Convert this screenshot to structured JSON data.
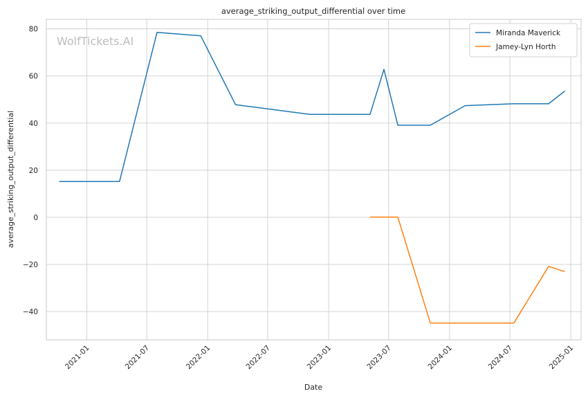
{
  "chart_data": {
    "type": "line",
    "title": "average_striking_output_differential over time",
    "xlabel": "Date",
    "ylabel": "average_striking_output_differential",
    "watermark": "WolfTickets.AI",
    "x_type": "date",
    "xlim": [
      "2020-09-01",
      "2025-02-01"
    ],
    "ylim": [
      -52,
      84
    ],
    "x_ticks": [
      "2021-01",
      "2021-07",
      "2022-01",
      "2022-07",
      "2023-01",
      "2023-07",
      "2024-01",
      "2024-07",
      "2025-01"
    ],
    "y_ticks": [
      80,
      60,
      40,
      20,
      0,
      -20,
      -40
    ],
    "grid": true,
    "legend_position": "top-right",
    "series": [
      {
        "name": "Miranda Maverick",
        "color": "#1f77b4",
        "points": [
          {
            "x": "2020-10-10",
            "y": 15.2
          },
          {
            "x": "2021-04-10",
            "y": 15.2
          },
          {
            "x": "2021-08-01",
            "y": 78.5
          },
          {
            "x": "2021-12-11",
            "y": 77.0
          },
          {
            "x": "2022-03-26",
            "y": 47.8
          },
          {
            "x": "2022-11-05",
            "y": 43.7
          },
          {
            "x": "2023-05-06",
            "y": 43.7
          },
          {
            "x": "2023-06-17",
            "y": 62.8
          },
          {
            "x": "2023-07-29",
            "y": 39.1
          },
          {
            "x": "2023-11-04",
            "y": 39.1
          },
          {
            "x": "2024-02-17",
            "y": 47.4
          },
          {
            "x": "2024-07-13",
            "y": 48.2
          },
          {
            "x": "2024-10-26",
            "y": 48.2
          },
          {
            "x": "2024-12-14",
            "y": 53.6
          }
        ]
      },
      {
        "name": "Jamey-Lyn Horth",
        "color": "#ff7f0e",
        "points": [
          {
            "x": "2023-05-06",
            "y": 0.1
          },
          {
            "x": "2023-07-29",
            "y": 0.1
          },
          {
            "x": "2023-11-04",
            "y": -44.9
          },
          {
            "x": "2024-07-13",
            "y": -44.9
          },
          {
            "x": "2024-10-26",
            "y": -20.8
          },
          {
            "x": "2024-12-14",
            "y": -23.1
          }
        ]
      }
    ]
  }
}
